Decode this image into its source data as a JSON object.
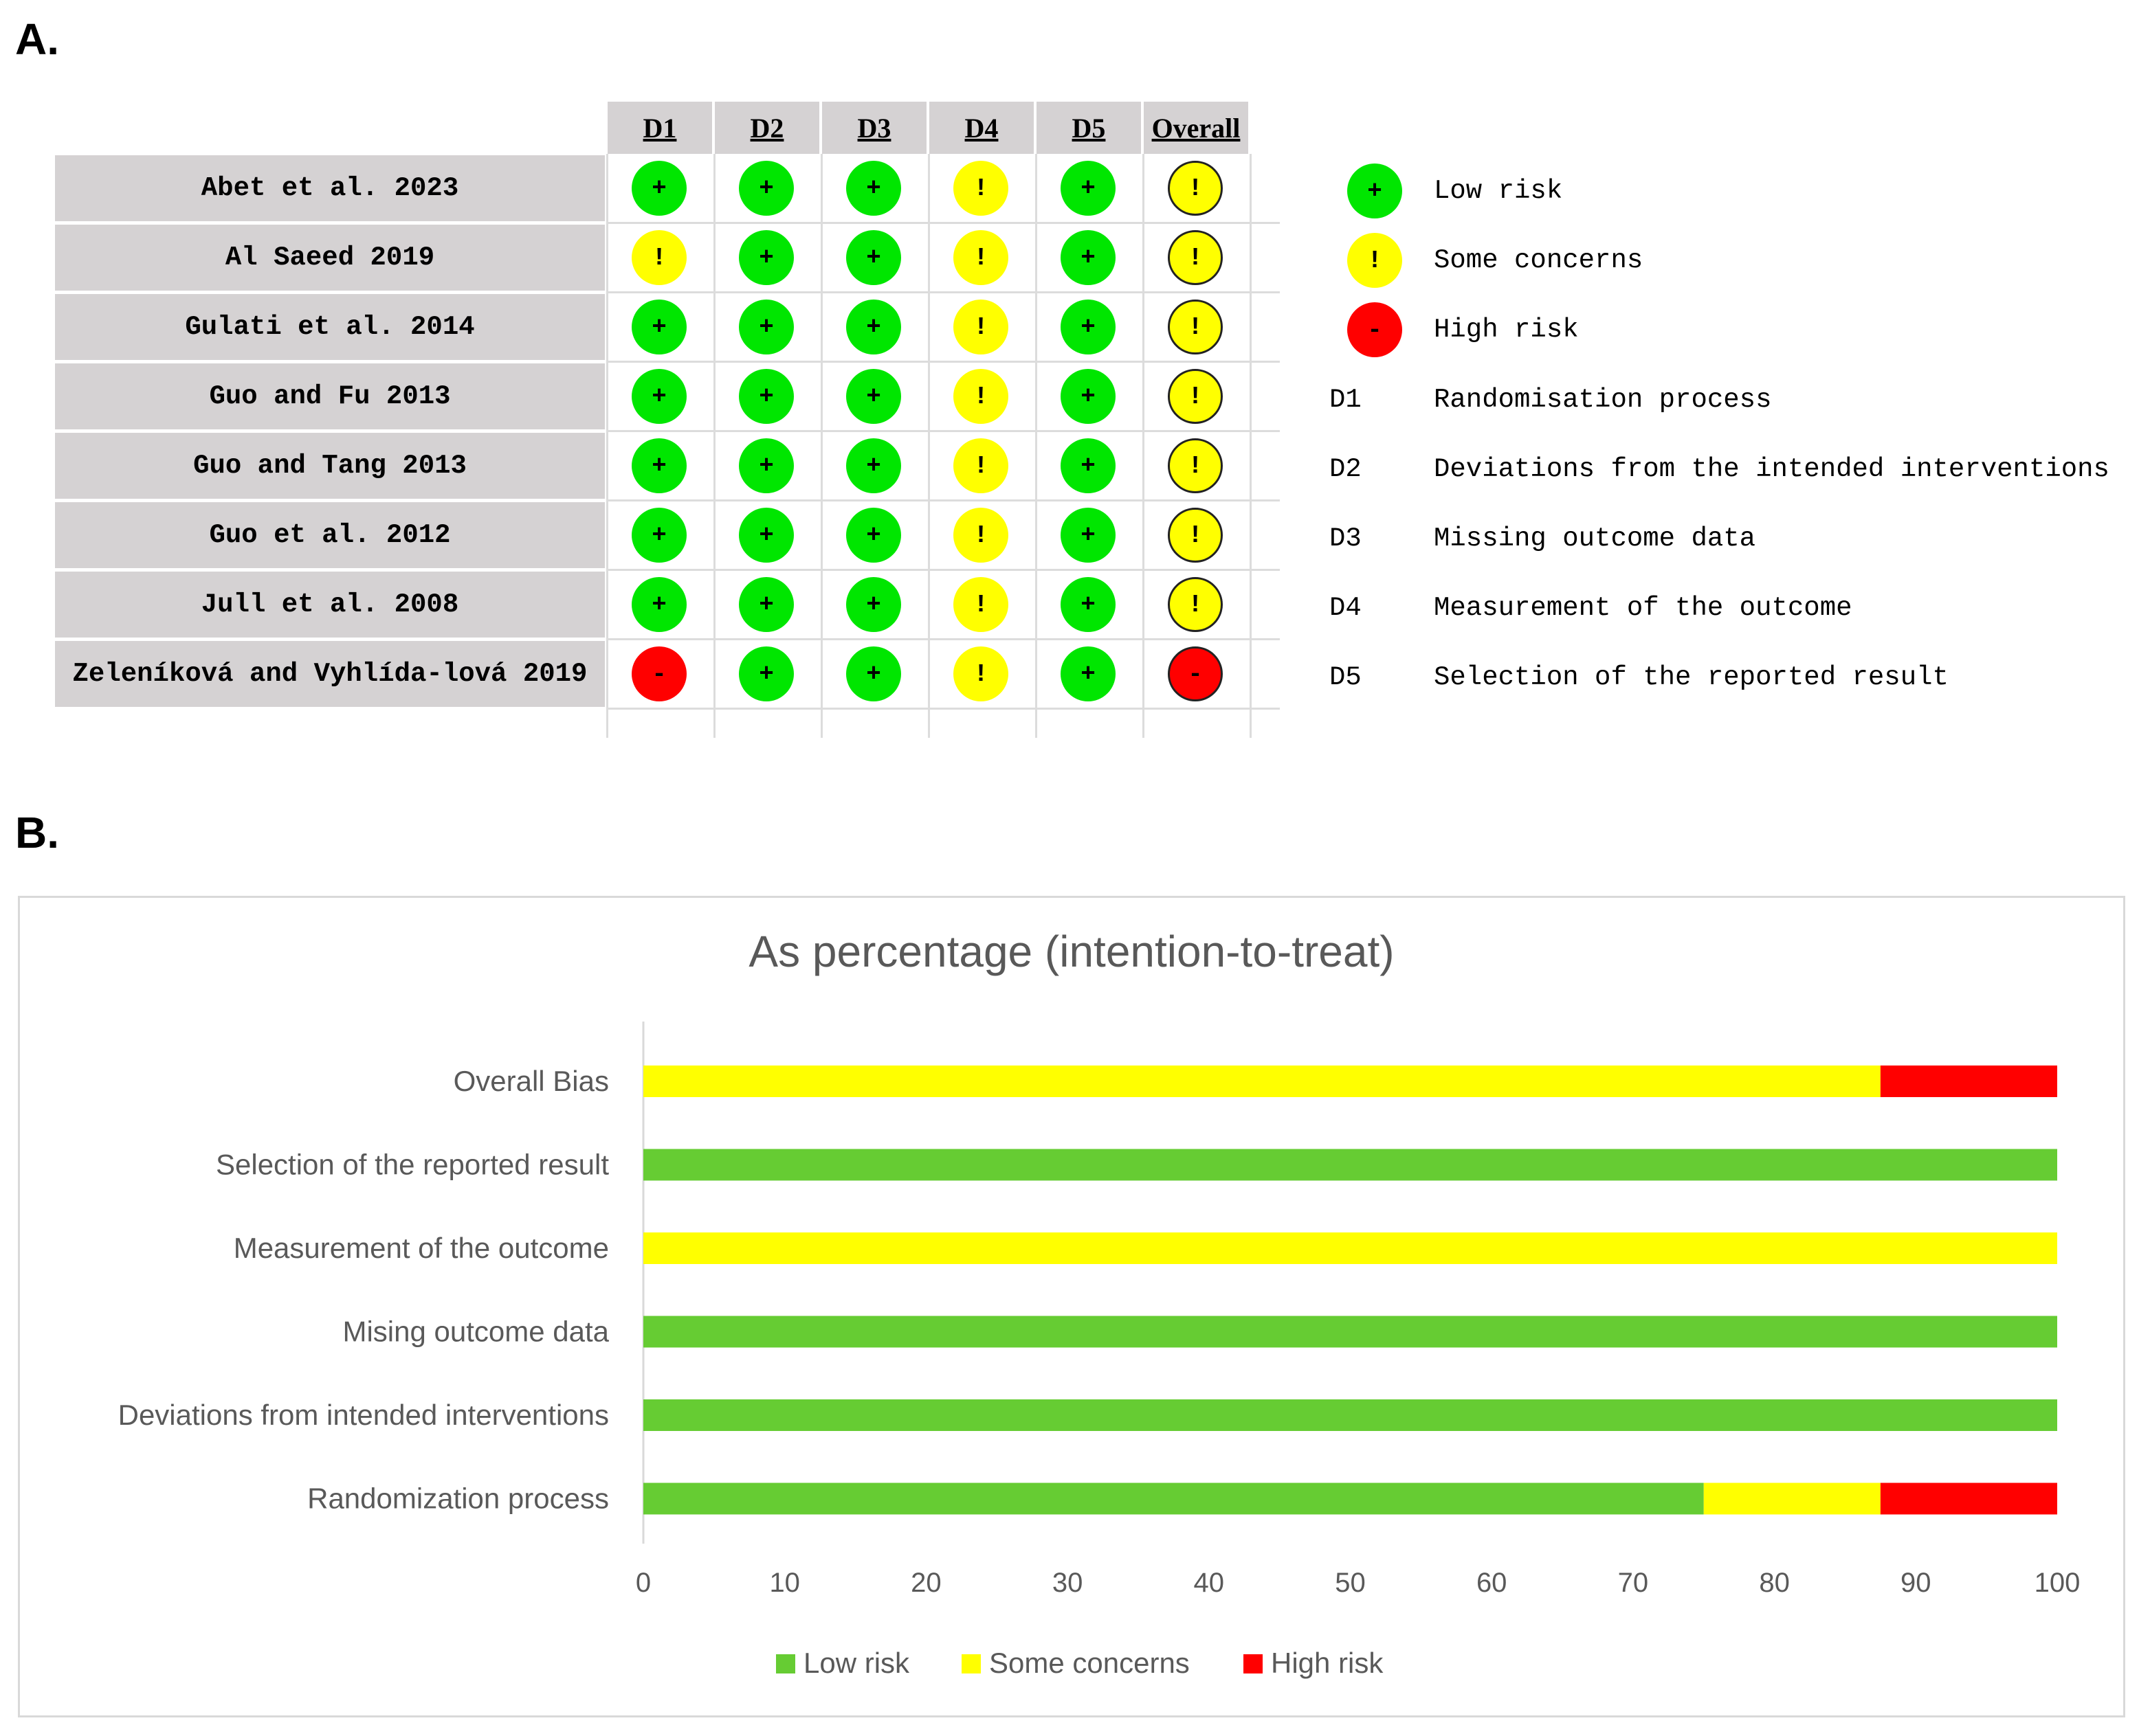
{
  "panels": {
    "a_label": "A.",
    "b_label": "B."
  },
  "risk_table": {
    "columns": [
      "D1",
      "D2",
      "D3",
      "D4",
      "D5",
      "Overall"
    ],
    "studies": [
      {
        "name": "Abet et al. 2023",
        "ratings": [
          "low",
          "low",
          "low",
          "some",
          "low",
          "some"
        ]
      },
      {
        "name": "Al Saeed 2019",
        "ratings": [
          "some",
          "low",
          "low",
          "some",
          "low",
          "some"
        ]
      },
      {
        "name": "Gulati et al. 2014",
        "ratings": [
          "low",
          "low",
          "low",
          "some",
          "low",
          "some"
        ]
      },
      {
        "name": "Guo and Fu 2013",
        "ratings": [
          "low",
          "low",
          "low",
          "some",
          "low",
          "some"
        ]
      },
      {
        "name": "Guo and Tang 2013",
        "ratings": [
          "low",
          "low",
          "low",
          "some",
          "low",
          "some"
        ]
      },
      {
        "name": "Guo et al. 2012",
        "ratings": [
          "low",
          "low",
          "low",
          "some",
          "low",
          "some"
        ]
      },
      {
        "name": "Jull et al. 2008",
        "ratings": [
          "low",
          "low",
          "low",
          "some",
          "low",
          "some"
        ]
      },
      {
        "name": "Zeleníková and Vyhlída-lová 2019",
        "ratings": [
          "high",
          "low",
          "low",
          "some",
          "low",
          "high"
        ]
      }
    ],
    "symbols": {
      "low": "+",
      "some": "!",
      "high": "-"
    },
    "colors": {
      "low": "#00e600",
      "some": "#ffff00",
      "high": "#ff0000"
    },
    "legend": [
      {
        "key": "low",
        "label": "Low risk"
      },
      {
        "key": "some",
        "label": "Some concerns"
      },
      {
        "key": "high",
        "label": "High risk"
      }
    ],
    "domains": [
      {
        "code": "D1",
        "desc": "Randomisation process"
      },
      {
        "code": "D2",
        "desc": "Deviations from the intended interventions"
      },
      {
        "code": "D3",
        "desc": "Missing outcome data"
      },
      {
        "code": "D4",
        "desc": "Measurement of the outcome"
      },
      {
        "code": "D5",
        "desc": "Selection of the reported result"
      }
    ]
  },
  "chart_data": {
    "type": "bar",
    "orientation": "horizontal",
    "stacked": true,
    "title": "As percentage (intention-to-treat)",
    "categories": [
      "Overall Bias",
      "Selection of the reported result",
      "Measurement of the outcome",
      "Mising outcome data",
      "Deviations from intended interventions",
      "Randomization process"
    ],
    "series": [
      {
        "name": "Low risk",
        "color": "#66cc33",
        "values": [
          0,
          100,
          0,
          100,
          100,
          75
        ]
      },
      {
        "name": "Some concerns",
        "color": "#ffff00",
        "values": [
          87.5,
          0,
          100,
          0,
          0,
          12.5
        ]
      },
      {
        "name": "High risk",
        "color": "#ff0000",
        "values": [
          12.5,
          0,
          0,
          0,
          0,
          12.5
        ]
      }
    ],
    "xlim": [
      0,
      100
    ],
    "xticks": [
      0,
      10,
      20,
      30,
      40,
      50,
      60,
      70,
      80,
      90,
      100
    ],
    "grid": false,
    "legend": "bottom"
  }
}
